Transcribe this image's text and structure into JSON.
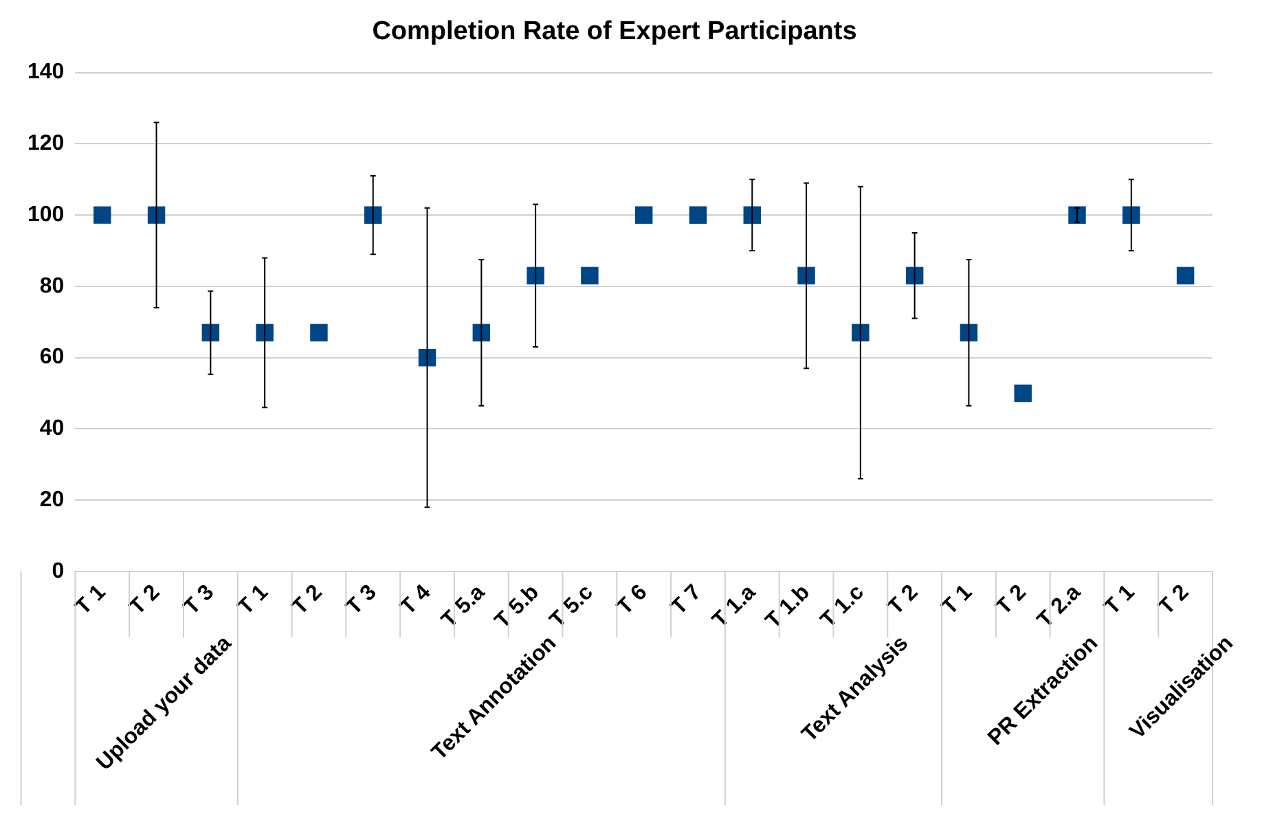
{
  "chart_data": {
    "type": "scatter",
    "title": "Completion Rate of Expert Participants",
    "categories": [
      "T 1",
      "T 2",
      "T 3",
      "T 1",
      "T 2",
      "T 3",
      "T 4",
      "T 5.a",
      "T 5.b",
      "T 5.c",
      "T 6",
      "T 7",
      "T 1.a",
      "T 1.b",
      "T 1.c",
      "T 2",
      "T 1",
      "T 2",
      "T 2.a",
      "T 1",
      "T 2"
    ],
    "series": [
      {
        "color": "#004586",
        "values": [
          100,
          100,
          67,
          67,
          67,
          100,
          60,
          67,
          83,
          83,
          100,
          100,
          100,
          83,
          67,
          83,
          67,
          50,
          100,
          100,
          83
        ],
        "errors": [
          null,
          26,
          11.7,
          21,
          null,
          11,
          42,
          20.5,
          20,
          null,
          null,
          null,
          10,
          26,
          41,
          12,
          20.5,
          null,
          2,
          10,
          null
        ]
      }
    ],
    "annotations": [
      "Upload your data",
      "Text Annotation",
      "Text Analysis",
      "PR Extraction",
      "Visualisation"
    ],
    "ylim": [
      0,
      140
    ],
    "yticks": [
      0,
      20,
      40,
      60,
      80,
      100,
      120,
      140
    ],
    "grid": "y",
    "legend": false,
    "marker": "square"
  }
}
